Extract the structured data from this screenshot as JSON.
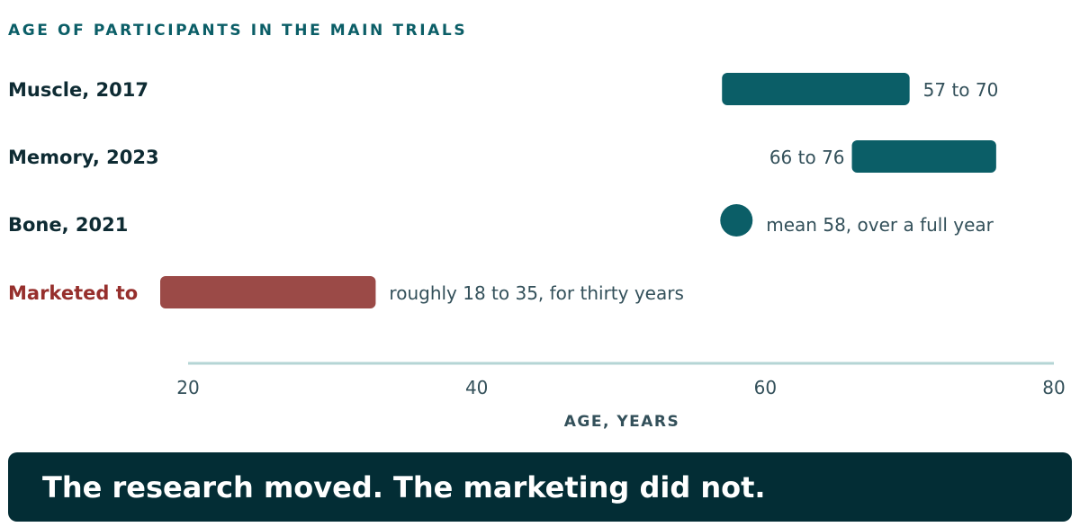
{
  "colors": {
    "accent": "#0b5e67",
    "highlight": "#9b4a47",
    "highlight_text": "#962f2c",
    "label_dark": "#0e2b33",
    "value_text": "#33505a",
    "axis_line": "#b5d5d5",
    "banner_bg": "#032d35"
  },
  "chart_data": {
    "type": "bar",
    "title": "AGE OF PARTICIPANTS IN THE MAIN TRIALS",
    "xlabel": "AGE, YEARS",
    "xlim": [
      20,
      80
    ],
    "xticks": [
      20,
      40,
      60,
      80
    ],
    "grid": false,
    "rows": [
      {
        "label": "Muscle, 2017",
        "start": 57,
        "end": 70,
        "annotation": "57 to 70",
        "annotation_side": "right",
        "highlight": false
      },
      {
        "label": "Memory, 2023",
        "start": 66,
        "end": 76,
        "annotation": "66 to 76",
        "annotation_side": "left",
        "highlight": false
      },
      {
        "label": "Bone, 2021",
        "point": 58,
        "annotation": "mean 58, over a full year",
        "annotation_side": "right",
        "highlight": false
      },
      {
        "label": "Marketed to",
        "start": 18,
        "end": 33,
        "annotation": "roughly 18 to 35, for thirty years",
        "annotation_side": "right",
        "highlight": true
      }
    ]
  },
  "banner": {
    "text": "The research moved. The marketing did not."
  }
}
